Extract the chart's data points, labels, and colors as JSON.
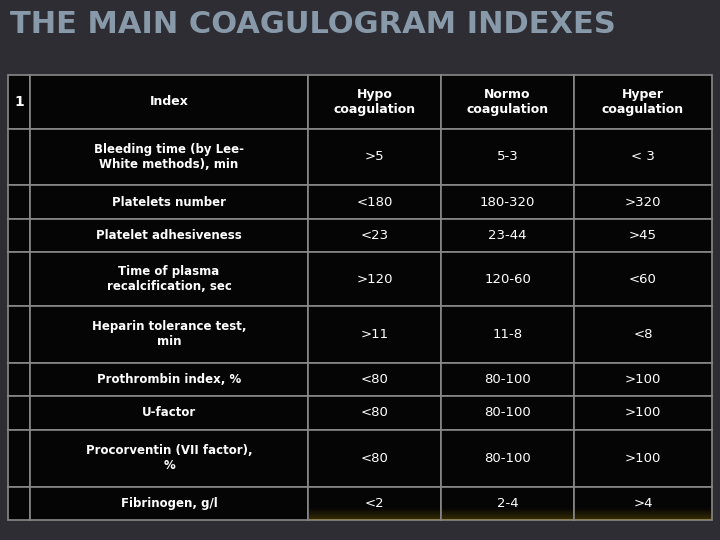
{
  "title": "THE MAIN COAGULOGRAM INDEXES",
  "title_color": "#8899aa",
  "title_fontsize": 22,
  "bg_color": "#2d2d33",
  "table_bg": "#050505",
  "border_color": "#888888",
  "text_color": "#ffffff",
  "col1_number": "1",
  "col_headers": [
    "Index",
    "Hypo\ncoagulation",
    "Normo\ncoagulation",
    "Hyper\ncoagulation"
  ],
  "rows": [
    [
      "Bleeding time (by Lee-\nWhite methods), min",
      ">5",
      "5-3",
      "< 3"
    ],
    [
      "Platelets number",
      "<180",
      "180-320",
      ">320"
    ],
    [
      "Platelet adhesiveness",
      "<23",
      "23-44",
      ">45"
    ],
    [
      "Time of plasma\nrecalcification, sec",
      ">120",
      "120-60",
      "<60"
    ],
    [
      "Heparin tolerance test,\nmin",
      ">11",
      "11-8",
      "<8"
    ],
    [
      "Prothrombin index, %",
      "<80",
      "80-100",
      ">100"
    ],
    [
      "U-factor",
      "<80",
      "80-100",
      ">100"
    ],
    [
      "Procorventin (VII factor),\n%",
      "<80",
      "80-100",
      ">100"
    ],
    [
      "Fibrinogen, g/l",
      "<2",
      "2-4",
      ">4"
    ]
  ],
  "row_heights_rel": [
    1.6,
    1.7,
    1.0,
    1.0,
    1.6,
    1.7,
    1.0,
    1.0,
    1.7,
    1.0
  ],
  "figsize": [
    7.2,
    5.4
  ],
  "dpi": 100
}
